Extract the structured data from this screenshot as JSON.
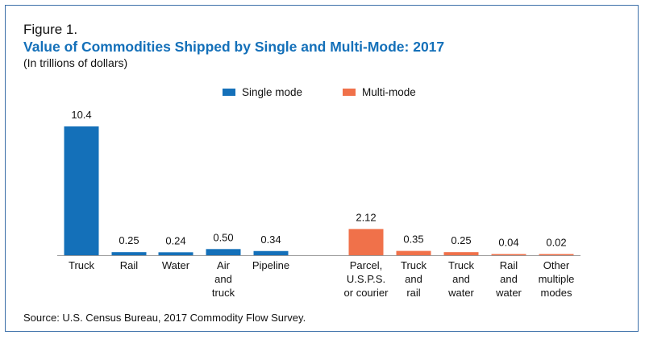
{
  "figure_label": "Figure 1.",
  "title": "Value of Commodities Shipped by Single and Multi-Mode: 2017",
  "subtitle": "(In trillions of dollars)",
  "source": "Source: U.S. Census Bureau, 2017 Commodity Flow Survey.",
  "colors": {
    "single": "#1470b9",
    "multi": "#f0714a",
    "title": "#1470b9",
    "border": "#3b6fa8"
  },
  "chart_data": {
    "type": "bar",
    "title": "Value of Commodities Shipped by Single and Multi-Mode: 2017",
    "subtitle": "(In trillions of dollars)",
    "xlabel": "",
    "ylabel": "",
    "ylim": [
      0,
      10.4
    ],
    "grid": false,
    "legend_placement": "top-center",
    "series": [
      {
        "name": "Single mode",
        "color": "#1470b9",
        "categories": [
          "Truck",
          "Rail",
          "Water",
          "Air\nand\ntruck",
          "Pipeline"
        ],
        "values": [
          10.4,
          0.25,
          0.24,
          0.5,
          0.34
        ],
        "labels": [
          "10.4",
          "0.25",
          "0.24",
          "0.50",
          "0.34"
        ]
      },
      {
        "name": "Multi-mode",
        "color": "#f0714a",
        "categories": [
          "Parcel,\nU.S.P.S.\nor courier",
          "Truck\nand\nrail",
          "Truck\nand\nwater",
          "Rail\nand\nwater",
          "Other\nmultiple\nmodes"
        ],
        "values": [
          2.12,
          0.35,
          0.25,
          0.04,
          0.02
        ],
        "labels": [
          "2.12",
          "0.35",
          "0.25",
          "0.04",
          "0.02"
        ]
      }
    ]
  }
}
